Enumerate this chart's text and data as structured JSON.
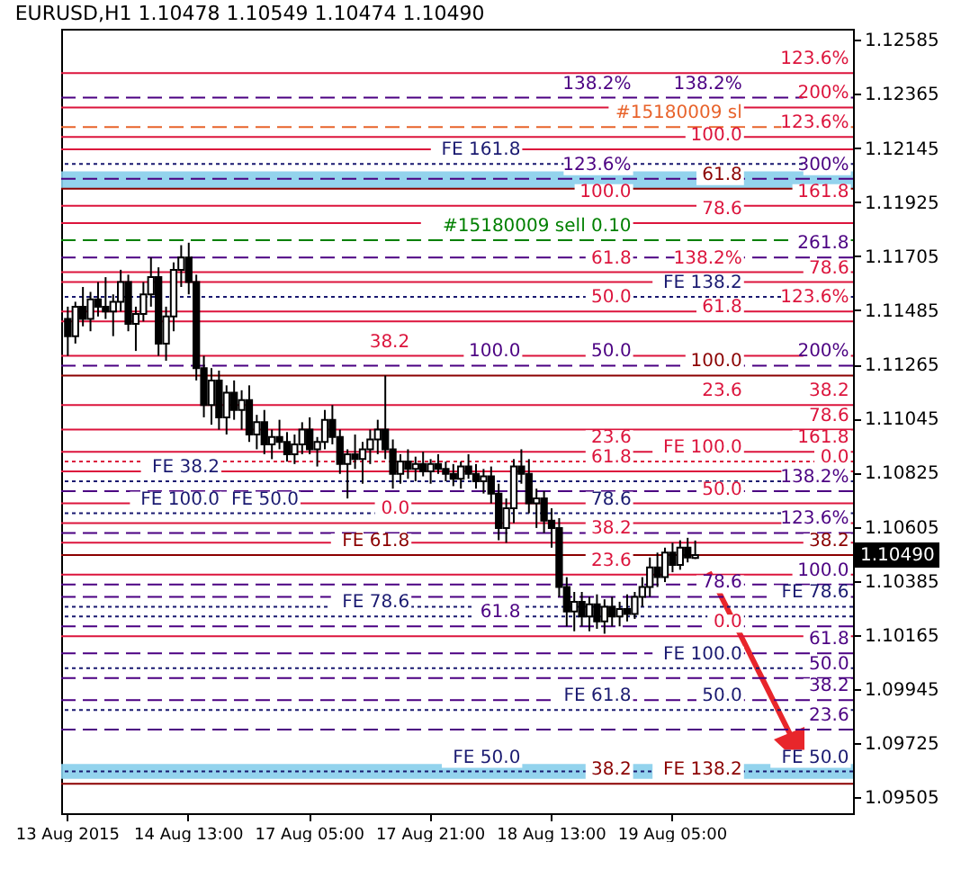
{
  "chart_data": {
    "type": "candlestick",
    "title": "EURUSD,H1  1.10478 1.10549 1.10474 1.10490",
    "categories": [
      "13 Aug 2015",
      null,
      null,
      null,
      null,
      null,
      null,
      null,
      null,
      null,
      null,
      null,
      null,
      null,
      null,
      null,
      "14 Aug 13:00",
      null,
      null,
      null,
      null,
      null,
      null,
      null,
      null,
      null,
      null,
      null,
      null,
      null,
      null,
      null,
      "17 Aug 05:00",
      null,
      null,
      null,
      null,
      null,
      null,
      null,
      null,
      null,
      null,
      null,
      null,
      null,
      null,
      null,
      "17 Aug 21:00",
      null,
      null,
      null,
      null,
      null,
      null,
      null,
      null,
      null,
      null,
      null,
      null,
      null,
      null,
      null,
      "18 Aug 13:00",
      null,
      null,
      null,
      null,
      null,
      null,
      null,
      null,
      null,
      null,
      null,
      null,
      null,
      null,
      null,
      "19 Aug 05:00",
      null,
      null,
      null,
      null,
      null,
      null,
      null,
      null,
      null,
      null,
      null,
      null,
      null,
      null,
      null,
      null,
      null,
      null,
      null,
      null,
      null,
      null,
      null
    ],
    "ohlc": [
      [
        1.1145,
        1.115,
        1.113,
        1.1138
      ],
      [
        1.1138,
        1.1152,
        1.1135,
        1.115
      ],
      [
        1.115,
        1.1158,
        1.1142,
        1.1145
      ],
      [
        1.1145,
        1.1156,
        1.114,
        1.1153
      ],
      [
        1.1153,
        1.116,
        1.1146,
        1.115
      ],
      [
        1.115,
        1.1162,
        1.1145,
        1.1148
      ],
      [
        1.1148,
        1.1155,
        1.1138,
        1.1152
      ],
      [
        1.1152,
        1.1165,
        1.1148,
        1.116
      ],
      [
        1.116,
        1.1163,
        1.114,
        1.1143
      ],
      [
        1.1143,
        1.115,
        1.1132,
        1.1147
      ],
      [
        1.1147,
        1.116,
        1.1144,
        1.1155
      ],
      [
        1.1155,
        1.117,
        1.115,
        1.1162
      ],
      [
        1.1162,
        1.1166,
        1.113,
        1.1135
      ],
      [
        1.1135,
        1.115,
        1.1128,
        1.1146
      ],
      [
        1.1146,
        1.1168,
        1.114,
        1.1165
      ],
      [
        1.1165,
        1.1175,
        1.1158,
        1.117
      ],
      [
        1.117,
        1.1176,
        1.1155,
        1.116
      ],
      [
        1.116,
        1.1163,
        1.112,
        1.1125
      ],
      [
        1.1125,
        1.113,
        1.1105,
        1.111
      ],
      [
        1.111,
        1.1125,
        1.1102,
        1.112
      ],
      [
        1.112,
        1.1124,
        1.11,
        1.1105
      ],
      [
        1.1105,
        1.1118,
        1.1098,
        1.1115
      ],
      [
        1.1115,
        1.112,
        1.1104,
        1.1108
      ],
      [
        1.1108,
        1.1116,
        1.11,
        1.1112
      ],
      [
        1.1112,
        1.1118,
        1.1095,
        1.1098
      ],
      [
        1.1098,
        1.1106,
        1.1092,
        1.1103
      ],
      [
        1.1103,
        1.1108,
        1.109,
        1.1094
      ],
      [
        1.1094,
        1.11,
        1.1088,
        1.1097
      ],
      [
        1.1097,
        1.1104,
        1.1092,
        1.1095
      ],
      [
        1.1095,
        1.1099,
        1.1087,
        1.109
      ],
      [
        1.109,
        1.1098,
        1.1086,
        1.1094
      ],
      [
        1.1094,
        1.1103,
        1.109,
        1.11
      ],
      [
        1.11,
        1.1105,
        1.109,
        1.1092
      ],
      [
        1.1092,
        1.1097,
        1.1085,
        1.1095
      ],
      [
        1.1095,
        1.1108,
        1.1092,
        1.1104
      ],
      [
        1.1104,
        1.111,
        1.1094,
        1.1097
      ],
      [
        1.1097,
        1.11,
        1.1082,
        1.1086
      ],
      [
        1.1086,
        1.1092,
        1.1072,
        1.109
      ],
      [
        1.109,
        1.1098,
        1.1084,
        1.1088
      ],
      [
        1.1088,
        1.1095,
        1.1078,
        1.1092
      ],
      [
        1.1092,
        1.11,
        1.1086,
        1.1096
      ],
      [
        1.1096,
        1.1104,
        1.109,
        1.11
      ],
      [
        1.11,
        1.1122,
        1.1088,
        1.1092
      ],
      [
        1.1092,
        1.1096,
        1.1076,
        1.1082
      ],
      [
        1.1082,
        1.109,
        1.1078,
        1.1087
      ],
      [
        1.1087,
        1.1092,
        1.108,
        1.1084
      ],
      [
        1.1084,
        1.1089,
        1.1079,
        1.1086
      ],
      [
        1.1086,
        1.1091,
        1.1081,
        1.1083
      ],
      [
        1.1083,
        1.1088,
        1.1078,
        1.1086
      ],
      [
        1.1086,
        1.109,
        1.1082,
        1.1084
      ],
      [
        1.1084,
        1.1087,
        1.1079,
        1.1082
      ],
      [
        1.1082,
        1.1086,
        1.1077,
        1.108
      ],
      [
        1.108,
        1.1087,
        1.1076,
        1.1085
      ],
      [
        1.1085,
        1.109,
        1.108,
        1.1082
      ],
      [
        1.1082,
        1.1086,
        1.1076,
        1.1079
      ],
      [
        1.1079,
        1.1084,
        1.1074,
        1.1081
      ],
      [
        1.1081,
        1.1085,
        1.107,
        1.1074
      ],
      [
        1.1074,
        1.1078,
        1.1055,
        1.106
      ],
      [
        1.106,
        1.1072,
        1.1054,
        1.1068
      ],
      [
        1.1068,
        1.1088,
        1.1062,
        1.1085
      ],
      [
        1.1085,
        1.1092,
        1.1078,
        1.1082
      ],
      [
        1.1082,
        1.1088,
        1.1066,
        1.107
      ],
      [
        1.107,
        1.1076,
        1.106,
        1.1072
      ],
      [
        1.1072,
        1.1075,
        1.1058,
        1.1063
      ],
      [
        1.1063,
        1.1068,
        1.1052,
        1.106
      ],
      [
        1.106,
        1.1064,
        1.1032,
        1.1036
      ],
      [
        1.1036,
        1.104,
        1.102,
        1.1026
      ],
      [
        1.1026,
        1.1034,
        1.1018,
        1.103
      ],
      [
        1.103,
        1.1034,
        1.102,
        1.1024
      ],
      [
        1.1024,
        1.1032,
        1.1018,
        1.1029
      ],
      [
        1.1029,
        1.1033,
        1.1019,
        1.1022
      ],
      [
        1.1022,
        1.1031,
        1.1017,
        1.1028
      ],
      [
        1.1028,
        1.1032,
        1.102,
        1.1024
      ],
      [
        1.1024,
        1.103,
        1.102,
        1.1027
      ],
      [
        1.1027,
        1.1033,
        1.1022,
        1.1025
      ],
      [
        1.1025,
        1.1034,
        1.1023,
        1.1032
      ],
      [
        1.1032,
        1.104,
        1.1028,
        1.1036
      ],
      [
        1.1036,
        1.1048,
        1.1032,
        1.1044
      ],
      [
        1.1044,
        1.105,
        1.1036,
        1.104
      ],
      [
        1.104,
        1.1052,
        1.1038,
        1.105
      ],
      [
        1.105,
        1.1054,
        1.1042,
        1.1045
      ],
      [
        1.1045,
        1.1055,
        1.1043,
        1.1052
      ],
      [
        1.1052,
        1.1056,
        1.1046,
        1.1048
      ],
      [
        1.10478,
        1.10549,
        1.10474,
        1.1049
      ],
      null,
      null,
      null,
      null,
      null,
      null,
      null,
      null,
      null,
      null,
      null,
      null,
      null,
      null,
      null,
      null,
      null,
      null,
      null,
      null
    ],
    "ylim": [
      1.0944,
      1.1263
    ],
    "yticks": [
      1.12585,
      1.12365,
      1.12145,
      1.11925,
      1.11705,
      1.11485,
      1.11265,
      1.11045,
      1.10825,
      1.10605,
      1.10385,
      1.10165,
      1.09945,
      1.09725,
      1.09505
    ],
    "bands": [
      {
        "axis": "y",
        "from": 1.1198,
        "to": 1.1205,
        "label": null,
        "color": "#87ceeb"
      },
      {
        "axis": "y",
        "from": 1.0958,
        "to": 1.0964,
        "label": null,
        "color": "#87ceeb"
      }
    ],
    "ref_lines": [
      {
        "axis": "y",
        "value": 1.1245,
        "color": "#dc143c",
        "line_style": "solid"
      },
      {
        "axis": "y",
        "value": 1.1235,
        "color": "#4b0082",
        "line_style": "dashed"
      },
      {
        "axis": "y",
        "value": 1.1231,
        "color": "#dc143c",
        "line_style": "solid"
      },
      {
        "axis": "y",
        "value": 1.1223,
        "color": "#e8632b",
        "line_style": "dashed"
      },
      {
        "axis": "y",
        "value": 1.1219,
        "color": "#dc143c",
        "line_style": "solid"
      },
      {
        "axis": "y",
        "value": 1.1214,
        "color": "#dc143c",
        "line_style": "solid"
      },
      {
        "axis": "y",
        "value": 1.1208,
        "color": "#191970",
        "line_style": "dotted"
      },
      {
        "axis": "y",
        "value": 1.1202,
        "color": "#4b0082",
        "line_style": "dashed"
      },
      {
        "axis": "y",
        "value": 1.1198,
        "color": "#8b0000",
        "line_style": "solid"
      },
      {
        "axis": "y",
        "value": 1.1191,
        "color": "#dc143c",
        "line_style": "solid"
      },
      {
        "axis": "y",
        "value": 1.1184,
        "color": "#dc143c",
        "line_style": "solid"
      },
      {
        "axis": "y",
        "value": 1.1177,
        "color": "#008000",
        "line_style": "dashed"
      },
      {
        "axis": "y",
        "value": 1.117,
        "color": "#4b0082",
        "line_style": "dashed"
      },
      {
        "axis": "y",
        "value": 1.1164,
        "color": "#dc143c",
        "line_style": "solid"
      },
      {
        "axis": "y",
        "value": 1.116,
        "color": "#dc143c",
        "line_style": "solid"
      },
      {
        "axis": "y",
        "value": 1.1154,
        "color": "#191970",
        "line_style": "dotted"
      },
      {
        "axis": "y",
        "value": 1.1148,
        "color": "#dc143c",
        "line_style": "solid"
      },
      {
        "axis": "y",
        "value": 1.1144,
        "color": "#dc143c",
        "line_style": "solid"
      },
      {
        "axis": "y",
        "value": 1.113,
        "color": "#dc143c",
        "line_style": "solid"
      },
      {
        "axis": "y",
        "value": 1.1126,
        "color": "#4b0082",
        "line_style": "dashed"
      },
      {
        "axis": "y",
        "value": 1.1122,
        "color": "#8b0000",
        "line_style": "solid"
      },
      {
        "axis": "y",
        "value": 1.111,
        "color": "#dc143c",
        "line_style": "solid"
      },
      {
        "axis": "y",
        "value": 1.11,
        "color": "#dc143c",
        "line_style": "solid"
      },
      {
        "axis": "y",
        "value": 1.1091,
        "color": "#dc143c",
        "line_style": "solid"
      },
      {
        "axis": "y",
        "value": 1.1087,
        "color": "#dc143c",
        "line_style": "dotted"
      },
      {
        "axis": "y",
        "value": 1.1083,
        "color": "#dc143c",
        "line_style": "solid"
      },
      {
        "axis": "y",
        "value": 1.1079,
        "color": "#191970",
        "line_style": "dotted"
      },
      {
        "axis": "y",
        "value": 1.1075,
        "color": "#4b0082",
        "line_style": "dashed"
      },
      {
        "axis": "y",
        "value": 1.107,
        "color": "#dc143c",
        "line_style": "solid"
      },
      {
        "axis": "y",
        "value": 1.1066,
        "color": "#191970",
        "line_style": "dotted"
      },
      {
        "axis": "y",
        "value": 1.1062,
        "color": "#dc143c",
        "line_style": "solid"
      },
      {
        "axis": "y",
        "value": 1.1058,
        "color": "#4b0082",
        "line_style": "dashed"
      },
      {
        "axis": "y",
        "value": 1.1054,
        "color": "#dc143c",
        "line_style": "solid"
      },
      {
        "axis": "y",
        "value": 1.1049,
        "label": "1.10490",
        "color": "#8b0000",
        "line_style": "solid"
      },
      {
        "axis": "y",
        "value": 1.1041,
        "color": "#dc143c",
        "line_style": "solid"
      },
      {
        "axis": "y",
        "value": 1.1037,
        "color": "#4b0082",
        "line_style": "dashed"
      },
      {
        "axis": "y",
        "value": 1.1032,
        "color": "#4b0082",
        "line_style": "dashed"
      },
      {
        "axis": "y",
        "value": 1.1028,
        "color": "#191970",
        "line_style": "dotted"
      },
      {
        "axis": "y",
        "value": 1.1024,
        "color": "#191970",
        "line_style": "dotted"
      },
      {
        "axis": "y",
        "value": 1.102,
        "color": "#4b0082",
        "line_style": "dashed"
      },
      {
        "axis": "y",
        "value": 1.1016,
        "color": "#dc143c",
        "line_style": "solid"
      },
      {
        "axis": "y",
        "value": 1.1009,
        "color": "#4b0082",
        "line_style": "dashed"
      },
      {
        "axis": "y",
        "value": 1.1003,
        "color": "#191970",
        "line_style": "dotted"
      },
      {
        "axis": "y",
        "value": 1.0999,
        "color": "#4b0082",
        "line_style": "dashed"
      },
      {
        "axis": "y",
        "value": 1.099,
        "color": "#4b0082",
        "line_style": "dashed"
      },
      {
        "axis": "y",
        "value": 1.0986,
        "color": "#191970",
        "line_style": "dotted"
      },
      {
        "axis": "y",
        "value": 1.0978,
        "color": "#4b0082",
        "line_style": "dashed"
      },
      {
        "axis": "y",
        "value": 1.0961,
        "color": "#191970",
        "line_style": "dotted"
      },
      {
        "axis": "y",
        "value": 1.0956,
        "color": "#8b0000",
        "line_style": "solid"
      }
    ],
    "annotations": [
      {
        "text": "300%",
        "y": 1.1202
      },
      {
        "text": "261.8",
        "y": 1.117
      },
      {
        "text": "200%",
        "y": 1.1126
      },
      {
        "text": "161.8",
        "y": 1.1091
      },
      {
        "text": "138.2%",
        "y": 1.1075
      },
      {
        "text": "123.6%",
        "y": 1.1058
      },
      {
        "text": "100.0",
        "y": 1.1037
      },
      {
        "text": "78.6",
        "y": 1.1032
      },
      {
        "text": "61.8",
        "y": 1.1009
      },
      {
        "text": "50.0",
        "y": 1.0999
      },
      {
        "text": "38.2",
        "y": 1.099
      },
      {
        "text": "23.6",
        "y": 1.0978
      },
      {
        "text": "61.8",
        "y": 1.1198
      },
      {
        "text": "38.2",
        "y": 1.1049
      },
      {
        "text": "FE 100.0",
        "y": 1.1087
      },
      {
        "text": "FE 50.0",
        "y": 1.0961
      },
      {
        "text": "200%",
        "y": 1.1231
      },
      {
        "text": "161.8",
        "y": 1.1191
      },
      {
        "text": "138.2%",
        "y": 1.1164
      },
      {
        "text": "123.6%",
        "y": 1.1148
      },
      {
        "text": "100.0",
        "y": 1.1122
      },
      {
        "text": "78.6",
        "y": 1.11
      },
      {
        "text": "61.8",
        "y": 1.1083
      },
      {
        "text": "50.0",
        "y": 1.107
      },
      {
        "text": "38.2",
        "y": 1.1054
      },
      {
        "text": "23.6",
        "y": 1.1041
      },
      {
        "text": "0.0",
        "y": 1.1016
      },
      {
        "text": "FE 38.2",
        "y": 1.1079
      },
      {
        "text": "FE 50.0",
        "y": 1.1066
      },
      {
        "text": "FE 61.8",
        "y": 1.1049
      },
      {
        "text": "FE 78.6",
        "y": 1.1028
      },
      {
        "text": "FE 100.0",
        "y": 1.1003
      },
      {
        "text": "FE 138.2",
        "y": 1.0956
      },
      {
        "text": "138.2%",
        "y": 1.1235
      },
      {
        "text": "123.6%",
        "y": 1.1219
      },
      {
        "text": "100.0",
        "y": 1.1191
      },
      {
        "text": "78.6",
        "y": 1.116
      },
      {
        "text": "61.8",
        "y": 1.1144
      },
      {
        "text": "50.0",
        "y": 1.1126
      },
      {
        "text": "38.2",
        "y": 1.111
      },
      {
        "text": "23.6",
        "y": 1.1091
      },
      {
        "text": "0.0",
        "y": 1.1062
      },
      {
        "text": "138.2%",
        "y": 1.1235
      },
      {
        "text": "123.6%",
        "y": 1.1202
      },
      {
        "text": "100.0",
        "y": 1.1126
      },
      {
        "text": "78.6",
        "y": 1.1066
      },
      {
        "text": "61.8",
        "y": 1.102
      },
      {
        "text": "50.0",
        "y": 1.0986
      },
      {
        "text": "38.2",
        "y": 1.0956
      },
      {
        "text": "123.6%",
        "y": 1.1245
      },
      {
        "text": "100.0",
        "y": 1.1214
      },
      {
        "text": "78.6",
        "y": 1.1184
      },
      {
        "text": "61.8",
        "y": 1.1164
      },
      {
        "text": "50.0",
        "y": 1.1148
      },
      {
        "text": "38.2",
        "y": 1.113
      },
      {
        "text": "23.6",
        "y": 1.111
      },
      {
        "text": "0.0",
        "y": 1.1083
      },
      {
        "text": "FE 161.8",
        "y": 1.1208
      },
      {
        "text": "FE 138.2",
        "y": 1.1154
      },
      {
        "text": "FE 100.0",
        "y": 1.1066
      },
      {
        "text": "FE 78.6",
        "y": 1.1024
      },
      {
        "text": "FE 61.8",
        "y": 1.0986
      },
      {
        "text": "FE 50.0",
        "y": 1.0961
      },
      {
        "text": "#15180009 sl",
        "y": 1.1223
      },
      {
        "text": "#15180009 sell 0.10",
        "y": 1.1177
      }
    ]
  }
}
